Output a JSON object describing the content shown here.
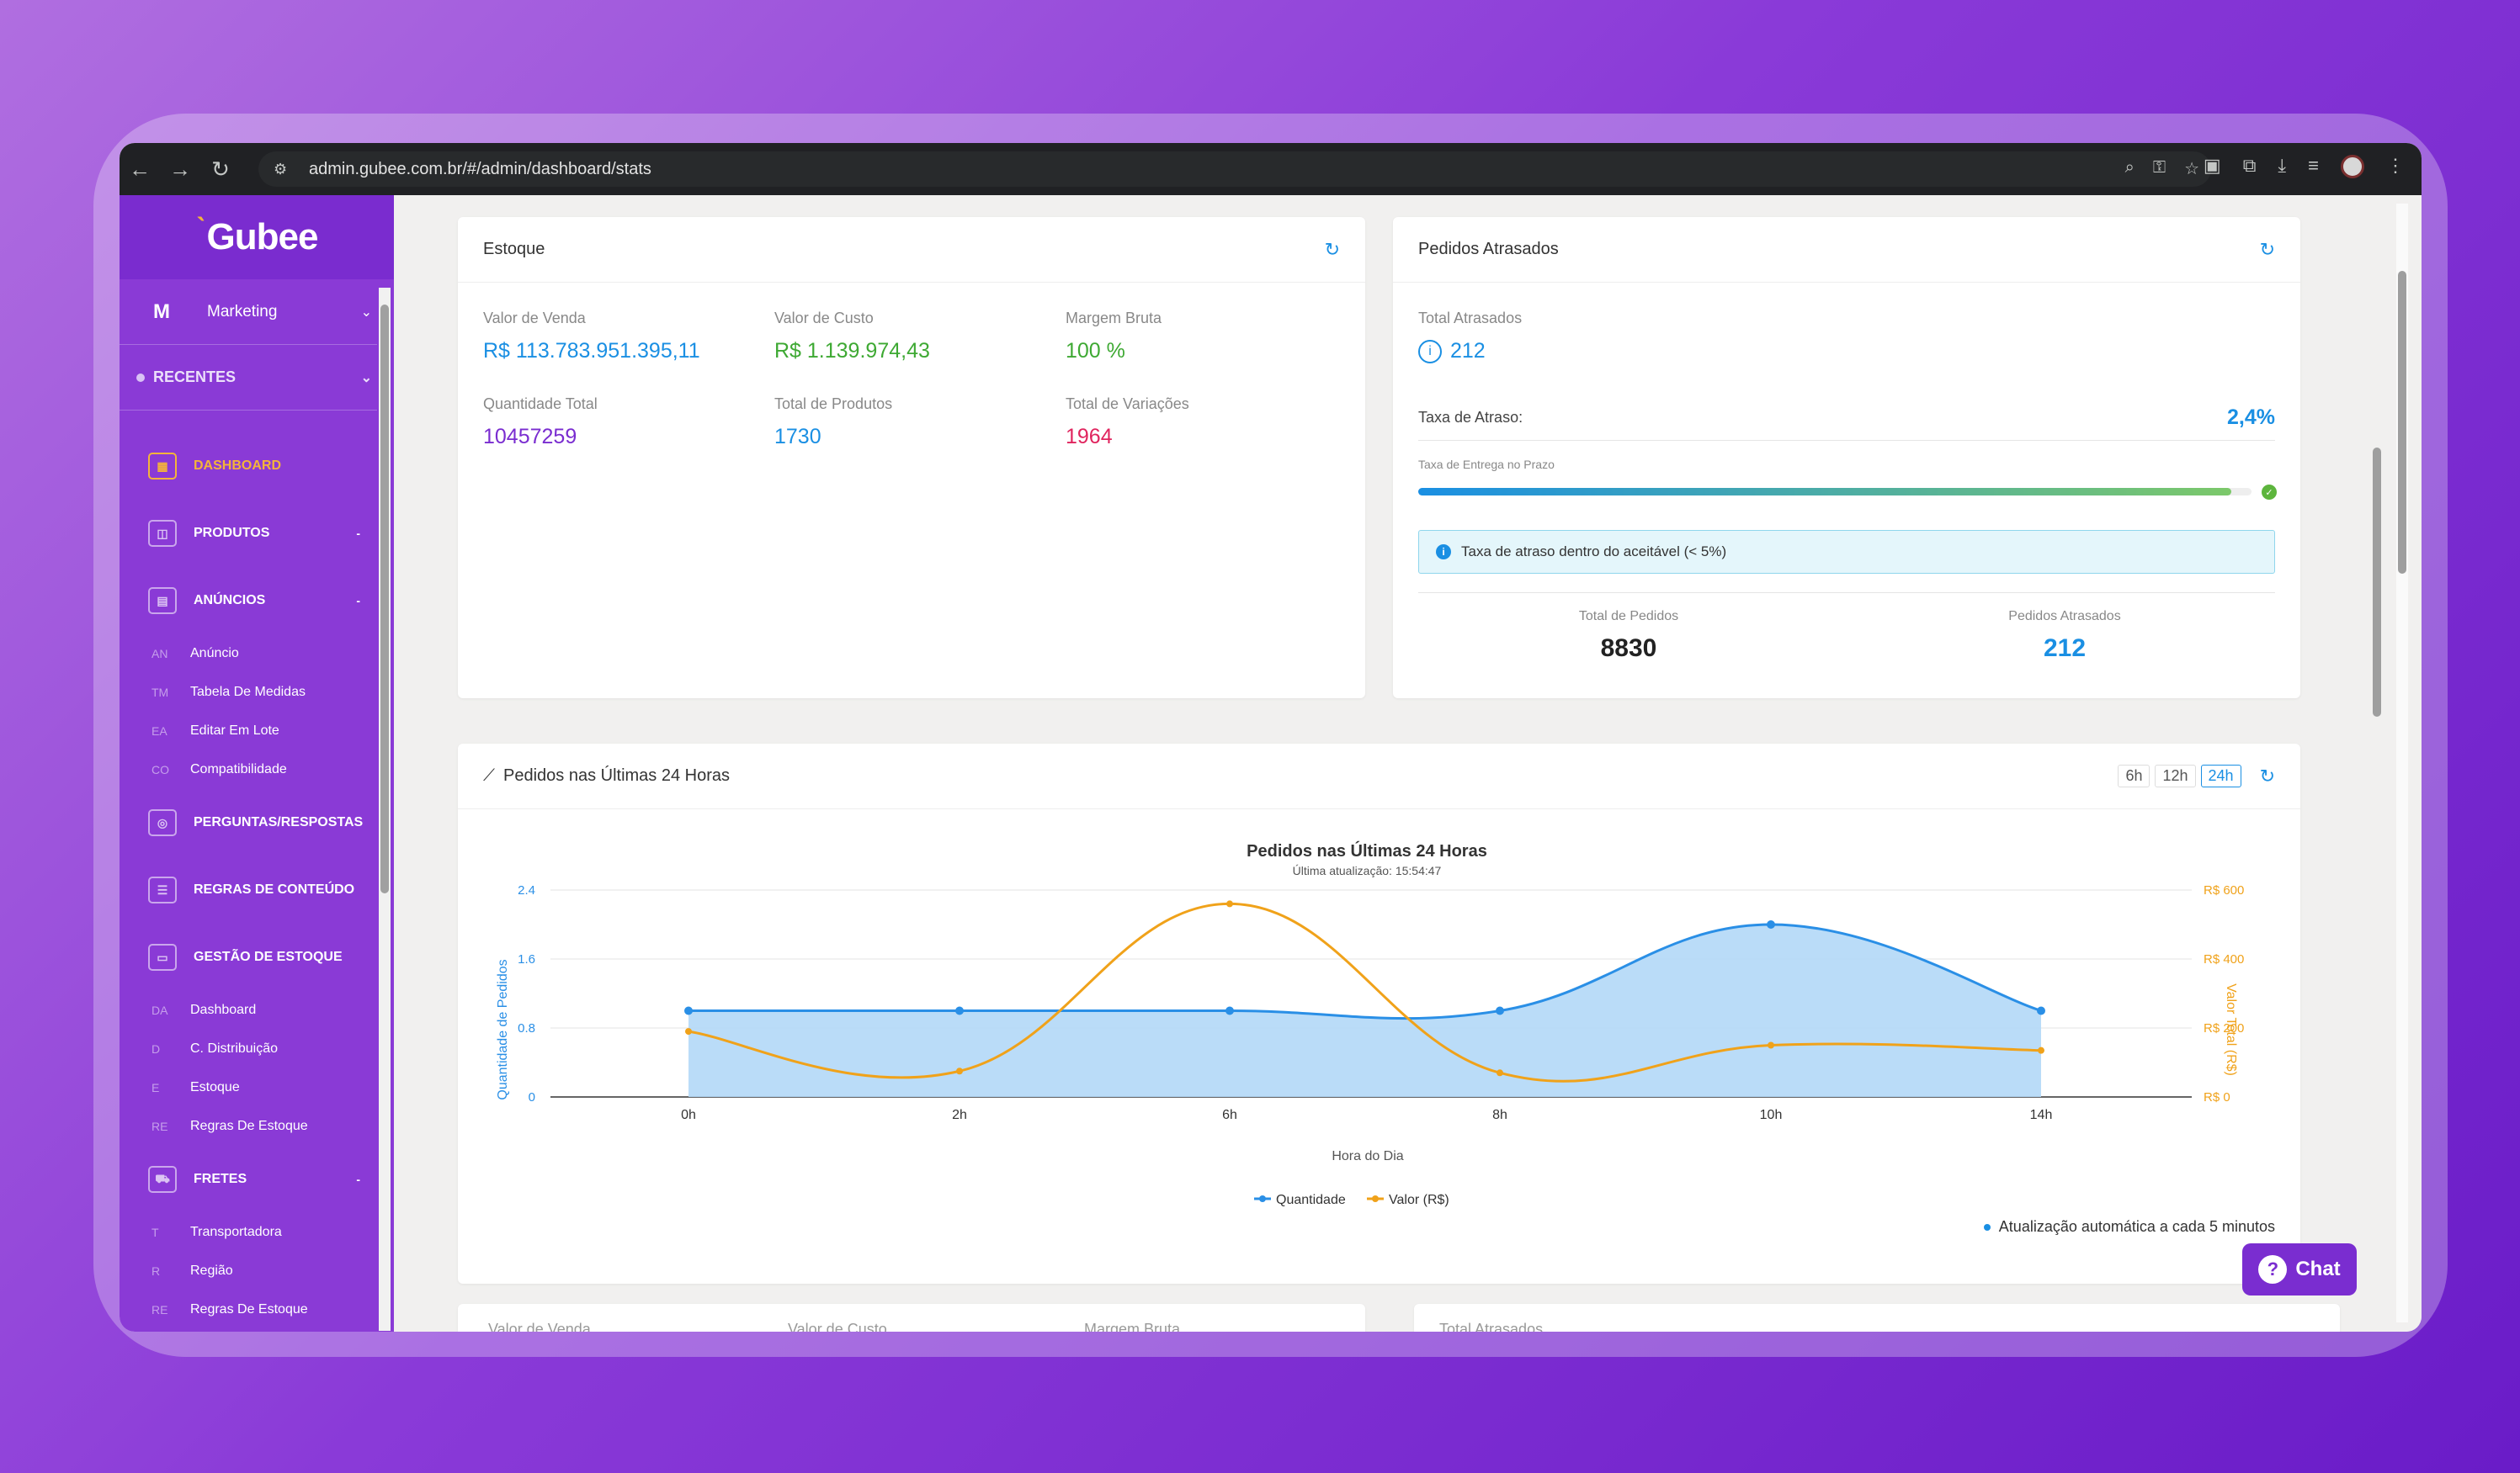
{
  "browser": {
    "url": "admin.gubee.com.br/#/admin/dashboard/stats"
  },
  "sidebar": {
    "logo": "Gubee",
    "org_initial": "M",
    "org_name": "Marketing",
    "recentes": "RECENTES",
    "items": [
      {
        "label": "DASHBOARD",
        "icon": "dashboard-icon"
      },
      {
        "label": "PRODUTOS",
        "icon": "bag-icon"
      },
      {
        "label": "ANÚNCIOS",
        "icon": "ad-icon"
      },
      {
        "label": "PERGUNTAS/RESPOSTAS",
        "icon": "headset-icon"
      },
      {
        "label": "REGRAS DE CONTEÚDO",
        "icon": "document-icon"
      },
      {
        "label": "GESTÃO DE ESTOQUE",
        "icon": "box-icon"
      },
      {
        "label": "FRETES",
        "icon": "truck-icon"
      }
    ],
    "anuncios_sub": [
      {
        "abbr": "AN",
        "label": "Anúncio"
      },
      {
        "abbr": "TM",
        "label": "Tabela De Medidas"
      },
      {
        "abbr": "EA",
        "label": "Editar Em Lote"
      },
      {
        "abbr": "CO",
        "label": "Compatibilidade"
      }
    ],
    "estoque_sub": [
      {
        "abbr": "DA",
        "label": "Dashboard"
      },
      {
        "abbr": "D",
        "label": "C. Distribuição"
      },
      {
        "abbr": "E",
        "label": "Estoque"
      },
      {
        "abbr": "RE",
        "label": "Regras De Estoque"
      }
    ],
    "fretes_sub": [
      {
        "abbr": "T",
        "label": "Transportadora"
      },
      {
        "abbr": "R",
        "label": "Região"
      },
      {
        "abbr": "RE",
        "label": "Regras De Estoque"
      }
    ]
  },
  "estoque": {
    "title": "Estoque",
    "valor_venda_label": "Valor de Venda",
    "valor_venda": "R$ 113.783.951.395,11",
    "valor_custo_label": "Valor de Custo",
    "valor_custo": "R$ 1.139.974,43",
    "margem_label": "Margem Bruta",
    "margem": "100 %",
    "qtd_label": "Quantidade Total",
    "qtd": "10457259",
    "produtos_label": "Total de Produtos",
    "produtos": "1730",
    "variacoes_label": "Total de Variações",
    "variacoes": "1964"
  },
  "atrasados": {
    "title": "Pedidos Atrasados",
    "total_label": "Total Atrasados",
    "total": "212",
    "taxa_label": "Taxa de Atraso:",
    "taxa": "2,4%",
    "entrega_label": "Taxa de Entrega no Prazo",
    "entrega_progress": 97.6,
    "info": "Taxa de atraso dentro do aceitável (< 5%)",
    "total_pedidos_label": "Total de Pedidos",
    "total_pedidos": "8830",
    "pedidos_atrasados_label": "Pedidos Atrasados",
    "pedidos_atrasados": "212"
  },
  "chart_card": {
    "title": "Pedidos nas Últimas 24 Horas",
    "ranges": [
      "6h",
      "12h",
      "24h"
    ],
    "active_range": "24h",
    "auto_update": "Atualização automática a cada 5 minutos"
  },
  "bottom_peek": {
    "labels": [
      "Valor de Venda",
      "Valor de Custo",
      "Margem Bruta",
      "Total Atrasados"
    ]
  },
  "chat": {
    "label": "Chat"
  },
  "chart_data": {
    "type": "line",
    "title": "Pedidos nas Últimas 24 Horas",
    "subtitle": "Última atualização: 15:54:47",
    "xlabel": "Hora do Dia",
    "ylabel": "Quantidade de Pedidos",
    "y2label": "Valor Total (R$)",
    "categories": [
      "0h",
      "2h",
      "6h",
      "8h",
      "10h",
      "14h"
    ],
    "ylim": [
      0,
      2.4
    ],
    "yticks": [
      "0",
      "0.8",
      "1.6",
      "2.4"
    ],
    "y2lim": [
      0,
      600
    ],
    "y2ticks": [
      "R$ 0",
      "R$ 200",
      "R$ 400",
      "R$ 600"
    ],
    "series": [
      {
        "name": "Quantidade",
        "axis": "left",
        "color": "#2a8fe6",
        "fill": "#b3d8f7",
        "values": [
          1,
          1,
          1,
          1,
          2,
          1
        ]
      },
      {
        "name": "Valor (R$)",
        "axis": "right",
        "color": "#f0a21a",
        "values": [
          190,
          75,
          560,
          70,
          150,
          135
        ]
      }
    ]
  }
}
